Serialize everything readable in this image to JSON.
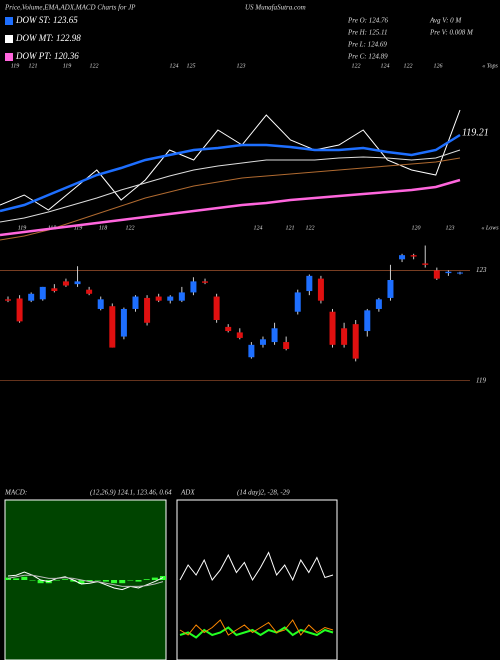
{
  "header": {
    "title": "Price,Volume,EMA,ADX,MACD Charts for JP",
    "site": "US MunafaSutra.com",
    "stats": [
      "Pre  O: 124.76",
      "Pre  H: 125.11",
      "Pre  L: 124.69",
      "Pre  C: 124.89",
      "Avg V: 0  M",
      "Pre  V: 0.008 M"
    ]
  },
  "legend": [
    {
      "name": "DOW ST: 123.65",
      "color": "#1e6fff"
    },
    {
      "name": "DOW MT: 122.98",
      "color": "#ffffff"
    },
    {
      "name": "DOW PT: 120.36",
      "color": "#ff66dd"
    }
  ],
  "top_labels": [
    "119",
    "121",
    "119",
    "122",
    "124",
    "125",
    "123",
    "122",
    "124",
    "122",
    "126",
    "« Tops"
  ],
  "low_labels": [
    "119",
    "118",
    "119",
    "118",
    "122",
    "124",
    "121",
    "122",
    "120",
    "123",
    "« Lows"
  ],
  "chart_data": [
    {
      "type": "line",
      "annotation": "119.21",
      "ylim": [
        110,
        128
      ],
      "series": [
        {
          "name": "close",
          "color": "#ffffff",
          "values": [
            113.5,
            114.5,
            113,
            115,
            117,
            114,
            116,
            119,
            118,
            121,
            119.5,
            122.5,
            120,
            119,
            119.5,
            121,
            118,
            117,
            116.5,
            123
          ]
        },
        {
          "name": "ST",
          "color": "#1e6fff",
          "values": [
            112.9,
            113.5,
            114.5,
            115.5,
            116.5,
            117.2,
            118,
            118.5,
            119,
            119.2,
            119.5,
            119.5,
            119.3,
            119,
            119,
            119.2,
            118.8,
            118.5,
            119,
            120.5
          ]
        },
        {
          "name": "MT",
          "color": "#dddddd",
          "values": [
            111.8,
            112.2,
            112.8,
            113.5,
            114.2,
            115,
            115.7,
            116.4,
            117,
            117.4,
            117.7,
            118,
            118,
            118,
            118.2,
            118.3,
            118.2,
            118,
            118.2,
            119
          ]
        },
        {
          "name": "LT",
          "color": "#b06a30",
          "values": [
            110,
            110.4,
            111,
            111.8,
            112.6,
            113.4,
            114.2,
            114.8,
            115.4,
            115.8,
            116.2,
            116.4,
            116.6,
            116.8,
            117,
            117.2,
            117.4,
            117.6,
            117.8,
            118.2
          ]
        },
        {
          "name": "PT",
          "color": "#ff66dd",
          "values": [
            110.5,
            110.8,
            111.1,
            111.4,
            111.7,
            112,
            112.3,
            112.6,
            112.9,
            113.2,
            113.5,
            113.7,
            114,
            114.2,
            114.4,
            114.6,
            114.8,
            115,
            115.3,
            116
          ]
        }
      ]
    },
    {
      "type": "candlestick",
      "ylim": [
        118.3,
        124.1
      ],
      "yticks": [
        123,
        119
      ],
      "up_color": "#1e6fff",
      "down_color": "#e01010",
      "open": [
        121.95,
        121.98,
        121.9,
        121.95,
        122.35,
        122.6,
        122.5,
        122.3,
        121.6,
        121.7,
        120.6,
        121.6,
        122.0,
        122.05,
        121.9,
        121.9,
        122.2,
        122.6,
        122.05,
        120.95,
        120.75,
        119.85,
        120.3,
        120.4,
        120.4,
        121.5,
        122.25,
        122.7,
        121.5,
        120.9,
        121.05,
        120.8,
        121.6,
        122.0,
        123.4,
        123.55,
        123.25,
        123.0,
        122.9,
        122.9
      ],
      "high": [
        122.05,
        122.1,
        122.2,
        122.4,
        122.5,
        122.7,
        123.15,
        122.4,
        122.05,
        121.8,
        121.65,
        122.1,
        122.1,
        122.15,
        122.1,
        122.4,
        122.75,
        122.7,
        122.15,
        121.05,
        120.9,
        120.4,
        120.6,
        121.1,
        120.6,
        122.3,
        122.85,
        122.8,
        121.6,
        121.1,
        121.2,
        121.6,
        122.0,
        123.2,
        123.6,
        123.6,
        123.9,
        123.1,
        123.0,
        122.95
      ],
      "low": [
        121.85,
        121.1,
        121.85,
        121.9,
        122.2,
        122.4,
        122.4,
        122.1,
        121.55,
        120.2,
        120.5,
        121.5,
        121.0,
        121.85,
        121.8,
        121.85,
        122.1,
        122.5,
        121.1,
        120.75,
        120.5,
        119.8,
        120.2,
        120.3,
        120.1,
        121.4,
        122.1,
        121.8,
        120.2,
        120.2,
        119.7,
        120.6,
        121.5,
        121.9,
        123.3,
        123.4,
        123.1,
        122.65,
        122.8,
        122.85
      ],
      "close": [
        121.9,
        121.15,
        122.15,
        122.4,
        122.25,
        122.45,
        122.6,
        122.15,
        121.95,
        120.2,
        121.6,
        122.05,
        121.1,
        121.9,
        122.05,
        122.2,
        122.6,
        122.55,
        121.2,
        120.8,
        120.55,
        120.3,
        120.5,
        120.9,
        120.15,
        122.2,
        122.8,
        121.9,
        120.3,
        120.3,
        119.8,
        121.55,
        121.95,
        122.65,
        123.55,
        123.5,
        123.2,
        122.7,
        122.95,
        122.92
      ]
    },
    {
      "type": "macd",
      "title": "MACD:",
      "subtitle": "(12,26,9) 124.1, 123.46, 0.64",
      "ylim": [
        -1,
        1
      ],
      "series": [
        {
          "name": "macd",
          "color": "#ffffff",
          "values": [
            0.05,
            0.06,
            0.1,
            0.06,
            0.0,
            -0.02,
            0.02,
            0.04,
            0.0,
            -0.05,
            -0.04,
            -0.02,
            -0.06,
            -0.1,
            -0.12,
            -0.08,
            -0.1,
            -0.06,
            -0.02,
            0.03
          ]
        },
        {
          "name": "signal",
          "color": "#bbbbbb",
          "values": [
            0.02,
            0.04,
            0.06,
            0.06,
            0.04,
            0.02,
            0.02,
            0.03,
            0.02,
            0.0,
            -0.02,
            -0.02,
            -0.04,
            -0.06,
            -0.08,
            -0.08,
            -0.08,
            -0.07,
            -0.05,
            -0.02
          ]
        }
      ],
      "histogram": [
        0.03,
        0.02,
        0.04,
        0.0,
        -0.04,
        -0.04,
        0.0,
        0.01,
        -0.02,
        -0.05,
        -0.02,
        0.0,
        -0.02,
        -0.04,
        -0.04,
        0.0,
        -0.02,
        0.01,
        0.03,
        0.05
      ],
      "hist_color": "#33ff33"
    },
    {
      "type": "adx",
      "title": "ADX",
      "subtitle": "(14 day)2, -28, -29",
      "ylim": [
        0,
        60
      ],
      "series": [
        {
          "name": "adx",
          "color": "#ffffff",
          "values": [
            30,
            36,
            32,
            38,
            30,
            34,
            40,
            33,
            37,
            30,
            35,
            41,
            32,
            36,
            30,
            38,
            33,
            39,
            31,
            32
          ]
        },
        {
          "name": "plus_di",
          "color": "#22ff22",
          "values": [
            8,
            9,
            7,
            10,
            8,
            9,
            11,
            8,
            9,
            10,
            8,
            10,
            9,
            11,
            8,
            10,
            9,
            8,
            10,
            9
          ]
        },
        {
          "name": "minus_di",
          "color": "#ff8800",
          "values": [
            10,
            8,
            12,
            9,
            11,
            14,
            8,
            10,
            12,
            9,
            11,
            13,
            9,
            10,
            14,
            8,
            12,
            9,
            11,
            10
          ]
        }
      ]
    }
  ]
}
